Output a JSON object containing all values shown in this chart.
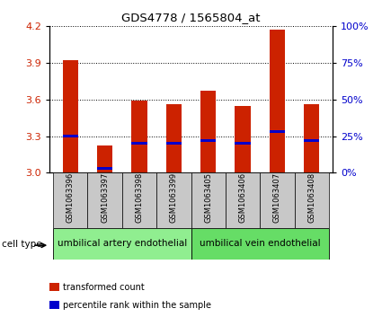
{
  "title": "GDS4778 / 1565804_at",
  "samples": [
    "GSM1063396",
    "GSM1063397",
    "GSM1063398",
    "GSM1063399",
    "GSM1063405",
    "GSM1063406",
    "GSM1063407",
    "GSM1063408"
  ],
  "transformed_counts": [
    3.92,
    3.22,
    3.59,
    3.56,
    3.67,
    3.55,
    4.17,
    3.56
  ],
  "percentile_ranks": [
    25,
    3,
    20,
    20,
    22,
    20,
    28,
    22
  ],
  "ylim_left": [
    3.0,
    4.2
  ],
  "ylim_right": [
    0,
    100
  ],
  "yticks_left": [
    3.0,
    3.3,
    3.6,
    3.9,
    4.2
  ],
  "yticks_right": [
    0,
    25,
    50,
    75,
    100
  ],
  "bar_color": "#cc2200",
  "percentile_color": "#0000cc",
  "cell_types": [
    {
      "label": "umbilical artery endothelial",
      "samples": [
        0,
        1,
        2,
        3
      ],
      "color": "#90ee90"
    },
    {
      "label": "umbilical vein endothelial",
      "samples": [
        4,
        5,
        6,
        7
      ],
      "color": "#66dd66"
    }
  ],
  "cell_type_label": "cell type",
  "legend_items": [
    {
      "label": "transformed count",
      "color": "#cc2200"
    },
    {
      "label": "percentile rank within the sample",
      "color": "#0000cc"
    }
  ],
  "bar_width": 0.45,
  "tick_label_color_left": "#cc2200",
  "tick_label_color_right": "#0000cc",
  "grid_color": "#000000",
  "bg_color": "#ffffff",
  "label_area_color": "#c8c8c8"
}
